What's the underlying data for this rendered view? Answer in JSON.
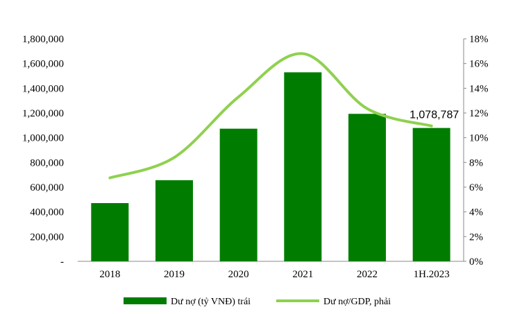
{
  "chart_data": {
    "type": "bar+line",
    "categories": [
      "2018",
      "2019",
      "2020",
      "2021",
      "2022",
      "1H.2023"
    ],
    "series": [
      {
        "name": "Dư nợ (tỷ VNĐ) trái",
        "type": "bar",
        "axis": "left",
        "color": "#007d00",
        "values": [
          471000,
          656000,
          1073000,
          1529000,
          1193000,
          1078787
        ]
      },
      {
        "name": "Dư nợ/GDP, phải",
        "type": "line",
        "axis": "right",
        "color": "#8fd14f",
        "values": [
          6.75,
          8.4,
          13.3,
          16.8,
          12.35,
          10.95
        ]
      }
    ],
    "data_labels": [
      {
        "category": "1H.2023",
        "text": "1,078,787"
      }
    ],
    "y_left": {
      "range": [
        0,
        1800000
      ],
      "ticks": [
        "-",
        "200,000",
        "400,000",
        "600,000",
        "800,000",
        "1,000,000",
        "1,200,000",
        "1,400,000",
        "1,600,000",
        "1,800,000"
      ]
    },
    "y_right": {
      "range": [
        0,
        18
      ],
      "ticks": [
        "0%",
        "2%",
        "4%",
        "6%",
        "8%",
        "10%",
        "12%",
        "14%",
        "16%",
        "18%"
      ]
    },
    "grid": false,
    "legend": "bottom"
  }
}
